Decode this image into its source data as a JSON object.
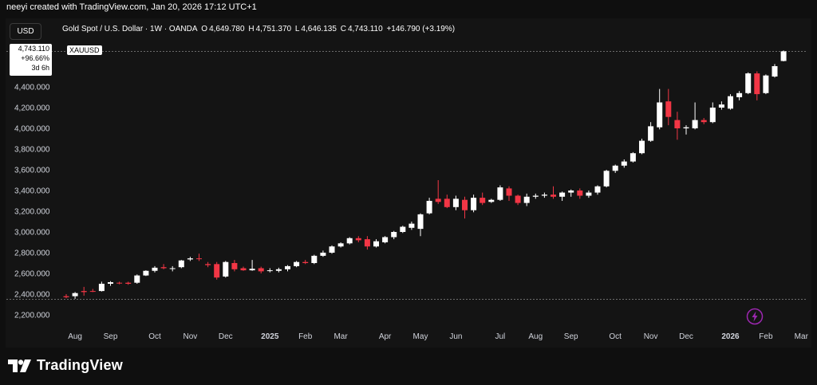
{
  "header": {
    "credit": "neeyi created with TradingView.com, Jan 20, 2026 17:12 UTC+1"
  },
  "toolbar": {
    "currency": "USD",
    "symbol_desc": "Gold Spot / U.S. Dollar · 1W · OANDA",
    "ohlc": {
      "open_label": "O",
      "open": "4,649.780",
      "high_label": "H",
      "high": "4,751.370",
      "low_label": "L",
      "low": "4,646.135",
      "close_label": "C",
      "close": "4,743.110",
      "change": "+146.790 (+3.19%)"
    }
  },
  "last_price": {
    "price": "4,743.110",
    "pct_change": "+96.66%",
    "countdown": "3d 6h",
    "ticker": "XAUUSD"
  },
  "branding": {
    "name": "TradingView"
  },
  "colors": {
    "background": "#0f0f0f",
    "panel": "#141414",
    "up_candle": "#ffffff",
    "down_candle": "#f23645",
    "axis_text": "#d1d4dc",
    "accent_icon": "#9c27b0"
  },
  "chart_data": {
    "type": "candlestick",
    "y_axis": {
      "min": 2200,
      "max": 4800,
      "ticks": [
        2200,
        2400,
        2600,
        2800,
        3000,
        3200,
        3400,
        3600,
        3800,
        4000,
        4200,
        4400
      ],
      "tick_labels": [
        "2,200.000",
        "2,400.000",
        "2,600.000",
        "2,800.000",
        "3,000.000",
        "3,200.000",
        "3,400.000",
        "3,600.000",
        "3,800.000",
        "4,000.000",
        "4,200.000",
        "4,400.000"
      ]
    },
    "x_axis": {
      "labels": [
        {
          "label": "Aug",
          "week": 1
        },
        {
          "label": "Sep",
          "week": 5
        },
        {
          "label": "Oct",
          "week": 10
        },
        {
          "label": "Nov",
          "week": 14
        },
        {
          "label": "Dec",
          "week": 18
        },
        {
          "label": "2025",
          "week": 23
        },
        {
          "label": "Feb",
          "week": 27
        },
        {
          "label": "Mar",
          "week": 31
        },
        {
          "label": "Apr",
          "week": 36
        },
        {
          "label": "May",
          "week": 40
        },
        {
          "label": "Jun",
          "week": 44
        },
        {
          "label": "Jul",
          "week": 49
        },
        {
          "label": "Aug",
          "week": 53
        },
        {
          "label": "Sep",
          "week": 57
        },
        {
          "label": "Oct",
          "week": 62
        },
        {
          "label": "Nov",
          "week": 66
        },
        {
          "label": "Dec",
          "week": 70
        },
        {
          "label": "2026",
          "week": 75
        },
        {
          "label": "Feb",
          "week": 79
        },
        {
          "label": "Mar",
          "week": 83
        }
      ],
      "bold_labels": [
        "2025",
        "2026"
      ]
    },
    "reference_lines": [
      4743.11,
      2350
    ],
    "candles": [
      {
        "o": 2380,
        "h": 2400,
        "l": 2360,
        "c": 2370
      },
      {
        "o": 2380,
        "h": 2420,
        "l": 2355,
        "c": 2410
      },
      {
        "o": 2430,
        "h": 2470,
        "l": 2385,
        "c": 2420
      },
      {
        "o": 2430,
        "h": 2450,
        "l": 2420,
        "c": 2425
      },
      {
        "o": 2430,
        "h": 2520,
        "l": 2425,
        "c": 2500
      },
      {
        "o": 2500,
        "h": 2525,
        "l": 2480,
        "c": 2515
      },
      {
        "o": 2510,
        "h": 2520,
        "l": 2495,
        "c": 2505
      },
      {
        "o": 2510,
        "h": 2520,
        "l": 2490,
        "c": 2500
      },
      {
        "o": 2510,
        "h": 2590,
        "l": 2500,
        "c": 2580
      },
      {
        "o": 2580,
        "h": 2630,
        "l": 2575,
        "c": 2625
      },
      {
        "o": 2625,
        "h": 2670,
        "l": 2610,
        "c": 2655
      },
      {
        "o": 2660,
        "h": 2690,
        "l": 2640,
        "c": 2650
      },
      {
        "o": 2650,
        "h": 2670,
        "l": 2620,
        "c": 2650
      },
      {
        "o": 2660,
        "h": 2730,
        "l": 2650,
        "c": 2725
      },
      {
        "o": 2735,
        "h": 2760,
        "l": 2720,
        "c": 2745
      },
      {
        "o": 2745,
        "h": 2790,
        "l": 2720,
        "c": 2740
      },
      {
        "o": 2690,
        "h": 2710,
        "l": 2660,
        "c": 2680
      },
      {
        "o": 2690,
        "h": 2710,
        "l": 2540,
        "c": 2560
      },
      {
        "o": 2570,
        "h": 2720,
        "l": 2560,
        "c": 2710
      },
      {
        "o": 2700,
        "h": 2730,
        "l": 2620,
        "c": 2640
      },
      {
        "o": 2650,
        "h": 2665,
        "l": 2625,
        "c": 2630
      },
      {
        "o": 2630,
        "h": 2730,
        "l": 2625,
        "c": 2645
      },
      {
        "o": 2650,
        "h": 2665,
        "l": 2600,
        "c": 2620
      },
      {
        "o": 2625,
        "h": 2650,
        "l": 2610,
        "c": 2630
      },
      {
        "o": 2625,
        "h": 2655,
        "l": 2610,
        "c": 2640
      },
      {
        "o": 2640,
        "h": 2680,
        "l": 2620,
        "c": 2670
      },
      {
        "o": 2670,
        "h": 2720,
        "l": 2660,
        "c": 2710
      },
      {
        "o": 2710,
        "h": 2730,
        "l": 2690,
        "c": 2700
      },
      {
        "o": 2700,
        "h": 2780,
        "l": 2690,
        "c": 2770
      },
      {
        "o": 2770,
        "h": 2820,
        "l": 2760,
        "c": 2800
      },
      {
        "o": 2800,
        "h": 2870,
        "l": 2790,
        "c": 2860
      },
      {
        "o": 2860,
        "h": 2900,
        "l": 2850,
        "c": 2890
      },
      {
        "o": 2890,
        "h": 2950,
        "l": 2880,
        "c": 2940
      },
      {
        "o": 2940,
        "h": 2960,
        "l": 2900,
        "c": 2920
      },
      {
        "o": 2930,
        "h": 2960,
        "l": 2830,
        "c": 2860
      },
      {
        "o": 2860,
        "h": 2930,
        "l": 2850,
        "c": 2910
      },
      {
        "o": 2900,
        "h": 2960,
        "l": 2890,
        "c": 2950
      },
      {
        "o": 2950,
        "h": 3010,
        "l": 2930,
        "c": 3000
      },
      {
        "o": 3000,
        "h": 3060,
        "l": 2990,
        "c": 3050
      },
      {
        "o": 3040,
        "h": 3100,
        "l": 3020,
        "c": 3080
      },
      {
        "o": 3030,
        "h": 3180,
        "l": 2960,
        "c": 3170
      },
      {
        "o": 3180,
        "h": 3330,
        "l": 3170,
        "c": 3300
      },
      {
        "o": 3320,
        "h": 3500,
        "l": 3270,
        "c": 3290
      },
      {
        "o": 3320,
        "h": 3360,
        "l": 3230,
        "c": 3240
      },
      {
        "o": 3240,
        "h": 3350,
        "l": 3210,
        "c": 3320
      },
      {
        "o": 3310,
        "h": 3340,
        "l": 3130,
        "c": 3210
      },
      {
        "o": 3210,
        "h": 3360,
        "l": 3190,
        "c": 3330
      },
      {
        "o": 3330,
        "h": 3380,
        "l": 3260,
        "c": 3280
      },
      {
        "o": 3290,
        "h": 3320,
        "l": 3280,
        "c": 3310
      },
      {
        "o": 3310,
        "h": 3450,
        "l": 3300,
        "c": 3430
      },
      {
        "o": 3420,
        "h": 3440,
        "l": 3300,
        "c": 3350
      },
      {
        "o": 3350,
        "h": 3360,
        "l": 3260,
        "c": 3280
      },
      {
        "o": 3280,
        "h": 3370,
        "l": 3250,
        "c": 3340
      },
      {
        "o": 3340,
        "h": 3370,
        "l": 3320,
        "c": 3350
      },
      {
        "o": 3350,
        "h": 3380,
        "l": 3330,
        "c": 3360
      },
      {
        "o": 3360,
        "h": 3440,
        "l": 3320,
        "c": 3340
      },
      {
        "o": 3340,
        "h": 3390,
        "l": 3300,
        "c": 3380
      },
      {
        "o": 3380,
        "h": 3410,
        "l": 3340,
        "c": 3400
      },
      {
        "o": 3400,
        "h": 3420,
        "l": 3320,
        "c": 3350
      },
      {
        "o": 3350,
        "h": 3400,
        "l": 3330,
        "c": 3380
      },
      {
        "o": 3380,
        "h": 3450,
        "l": 3360,
        "c": 3440
      },
      {
        "o": 3440,
        "h": 3600,
        "l": 3430,
        "c": 3590
      },
      {
        "o": 3590,
        "h": 3650,
        "l": 3570,
        "c": 3640
      },
      {
        "o": 3640,
        "h": 3700,
        "l": 3620,
        "c": 3680
      },
      {
        "o": 3680,
        "h": 3770,
        "l": 3670,
        "c": 3760
      },
      {
        "o": 3760,
        "h": 3900,
        "l": 3750,
        "c": 3880
      },
      {
        "o": 3880,
        "h": 4060,
        "l": 3870,
        "c": 4020
      },
      {
        "o": 4010,
        "h": 4380,
        "l": 3990,
        "c": 4250
      },
      {
        "o": 4260,
        "h": 4380,
        "l": 4030,
        "c": 4110
      },
      {
        "o": 4080,
        "h": 4160,
        "l": 3890,
        "c": 4000
      },
      {
        "o": 4000,
        "h": 4030,
        "l": 3940,
        "c": 4010
      },
      {
        "o": 4000,
        "h": 4250,
        "l": 3990,
        "c": 4080
      },
      {
        "o": 4080,
        "h": 4100,
        "l": 4040,
        "c": 4060
      },
      {
        "o": 4060,
        "h": 4250,
        "l": 4050,
        "c": 4200
      },
      {
        "o": 4200,
        "h": 4260,
        "l": 4180,
        "c": 4230
      },
      {
        "o": 4190,
        "h": 4330,
        "l": 4180,
        "c": 4310
      },
      {
        "o": 4300,
        "h": 4360,
        "l": 4270,
        "c": 4340
      },
      {
        "o": 4340,
        "h": 4540,
        "l": 4330,
        "c": 4530
      },
      {
        "o": 4530,
        "h": 4550,
        "l": 4270,
        "c": 4330
      },
      {
        "o": 4340,
        "h": 4520,
        "l": 4330,
        "c": 4510
      },
      {
        "o": 4500,
        "h": 4620,
        "l": 4490,
        "c": 4600
      },
      {
        "o": 4649.78,
        "h": 4751.37,
        "l": 4646.135,
        "c": 4743.11
      }
    ]
  }
}
